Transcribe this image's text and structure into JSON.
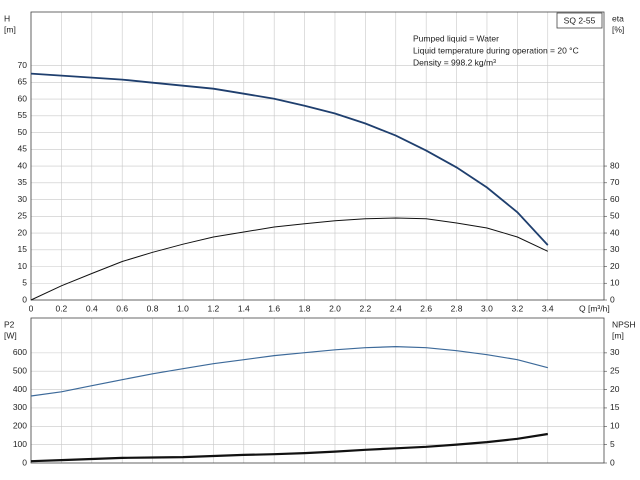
{
  "chart_data": [
    {
      "type": "line",
      "title": "SQ 2-55",
      "annotations": [
        "Pumped liquid = Water",
        "Liquid temperature during operation = 20 °C",
        "Density = 998.2 kg/m³"
      ],
      "ylabel": "H",
      "yunit": "[m]",
      "y2label": "eta",
      "y2unit": "[%]",
      "xlabel": "Q [m³/h]",
      "x": [
        0,
        0.2,
        0.4,
        0.6,
        0.8,
        1.0,
        1.2,
        1.4,
        1.6,
        1.8,
        2.0,
        2.2,
        2.4,
        2.6,
        2.8,
        3.0,
        3.2,
        3.4
      ],
      "series": [
        {
          "color": "#1f3f6e",
          "axis": "y",
          "values": [
            67.6,
            67.0,
            66.4,
            65.8,
            64.9,
            64.0,
            63.1,
            61.6,
            60.1,
            58.0,
            55.7,
            52.7,
            49.1,
            44.6,
            39.6,
            33.6,
            26.2,
            16.4
          ]
        },
        {
          "color": "#111111",
          "axis": "y2",
          "values": [
            0,
            8.5,
            15.8,
            23,
            28.5,
            33.3,
            37.6,
            40.6,
            43.6,
            45.5,
            47.3,
            48.5,
            49,
            48.5,
            46,
            43,
            37.6,
            29.1
          ]
        }
      ],
      "xlim": [
        0,
        3.77
      ],
      "xticks": [
        0,
        0.2,
        0.4,
        0.6,
        0.8,
        {
          "value": 1,
          "label": "1.0"
        },
        1.2,
        1.4,
        1.6,
        1.8,
        {
          "value": 2,
          "label": "2.0"
        },
        2.2,
        2.4,
        2.6,
        2.8,
        {
          "value": 3,
          "label": "3.0"
        },
        3.2,
        3.4
      ],
      "xtick_labels": true,
      "ylim": [
        0,
        86
      ],
      "yticks": [
        0,
        5,
        10,
        15,
        20,
        25,
        30,
        35,
        40,
        45,
        50,
        55,
        60,
        65,
        70
      ],
      "y2lim": [
        0,
        172
      ],
      "y2ticks": [
        0,
        10,
        20,
        30,
        40,
        50,
        60,
        70,
        80
      ],
      "grid": true
    },
    {
      "type": "line",
      "ylabel": "P2",
      "yunit": "[W]",
      "y2label": "NPSH",
      "y2unit": "[m]",
      "x": [
        0,
        0.2,
        0.4,
        0.6,
        0.8,
        1.0,
        1.2,
        1.4,
        1.6,
        1.8,
        2.0,
        2.2,
        2.4,
        2.6,
        2.8,
        3.0,
        3.2,
        3.4
      ],
      "series": [
        {
          "color": "#3d6a9a",
          "axis": "y",
          "values": [
            365,
            388,
            421,
            454,
            486,
            514,
            541,
            563,
            585,
            601,
            617,
            628,
            634,
            628,
            612,
            590,
            563,
            519
          ]
        },
        {
          "color": "#111111",
          "axis": "y2",
          "values": [
            0.5,
            0.8,
            1.1,
            1.4,
            1.5,
            1.6,
            1.9,
            2.2,
            2.4,
            2.7,
            3.1,
            3.6,
            4.0,
            4.4,
            5.0,
            5.7,
            6.6,
            7.9
          ]
        }
      ],
      "xlim": [
        0,
        3.77
      ],
      "xticks": [
        0,
        0.2,
        0.4,
        0.6,
        0.8,
        1,
        1.2,
        1.4,
        1.6,
        1.8,
        2,
        2.2,
        2.4,
        2.6,
        2.8,
        3,
        3.2,
        3.4
      ],
      "xtick_labels": false,
      "ylim": [
        0,
        790
      ],
      "yticks": [
        0,
        100,
        200,
        300,
        400,
        500,
        600
      ],
      "y2lim": [
        0,
        39.5
      ],
      "y2ticks": [
        0,
        5,
        10,
        15,
        20,
        25,
        30
      ],
      "grid": true
    }
  ]
}
